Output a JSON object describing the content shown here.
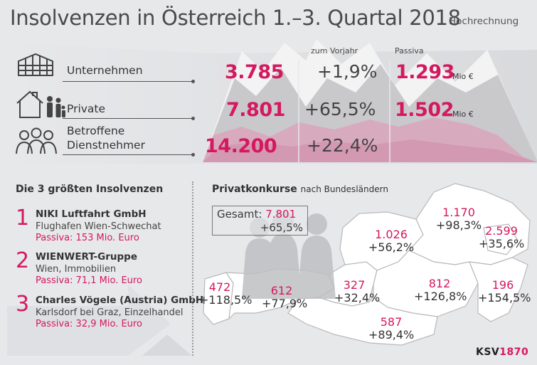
{
  "title": "Insolvenzen in Österreich 1.–3. Quartal 2018",
  "subtitle": "Hochrechnung",
  "columns": {
    "vorjahr": "zum Vorjahr",
    "passiva": "Passiva"
  },
  "rows": [
    {
      "label": "Unternehmen",
      "count": "3.785",
      "change": "+1,9%",
      "passiva": "1.293",
      "unit": "Mio €",
      "icon": "office-building-icon"
    },
    {
      "label": "Private",
      "count": "7.801",
      "change": "+65,5%",
      "passiva": "1.502",
      "unit": "Mio €",
      "icon": "house-family-icon"
    },
    {
      "label_line1": "Betroffene",
      "label_line2": "Dienstnehmer",
      "count": "14.200",
      "change": "+22,4%",
      "icon": "employees-icon"
    }
  ],
  "largest": {
    "title": "Die 3 größten Insolvenzen",
    "items": [
      {
        "rank": "1",
        "name": "NIKI Luftfahrt GmbH",
        "location": "Flughafen Wien-Schwechat",
        "passiva": "Passiva: 153 Mio. Euro"
      },
      {
        "rank": "2",
        "name": "WIENWERT-Gruppe",
        "location": "Wien, Immobilien",
        "passiva": "Passiva: 71,1 Mio. Euro"
      },
      {
        "rank": "3",
        "name": "Charles Vögele (Austria) GmbH",
        "location": "Karlsdorf bei Graz, Einzelhandel",
        "passiva": "Passiva: 32,9 Mio. Euro"
      }
    ]
  },
  "private": {
    "title": "Privatkonkurse",
    "title_suffix": "nach Bundesländern",
    "total_label": "Gesamt:",
    "total_value": "7.801",
    "total_change": "+65,5%",
    "states": [
      {
        "id": "vorarlberg",
        "value": "472",
        "change": "+118,5%"
      },
      {
        "id": "tirol",
        "value": "612",
        "change": "+77,9%"
      },
      {
        "id": "salzburg",
        "value": "327",
        "change": "+32,4%"
      },
      {
        "id": "oberoesterreich",
        "value": "1.026",
        "change": "+56,2%"
      },
      {
        "id": "niederoesterreich",
        "value": "1.170",
        "change": "+98,3%"
      },
      {
        "id": "wien",
        "value": "2.599",
        "change": "+35,6%"
      },
      {
        "id": "steiermark",
        "value": "812",
        "change": "+126,8%"
      },
      {
        "id": "burgenland",
        "value": "196",
        "change": "+154,5%"
      },
      {
        "id": "kaernten",
        "value": "587",
        "change": "+89,4%"
      }
    ]
  },
  "logo": {
    "part1": "KSV",
    "part2": "1870"
  },
  "colors": {
    "accent": "#d4195f",
    "text": "#3a3a3a",
    "background": "#e7e8ea"
  }
}
